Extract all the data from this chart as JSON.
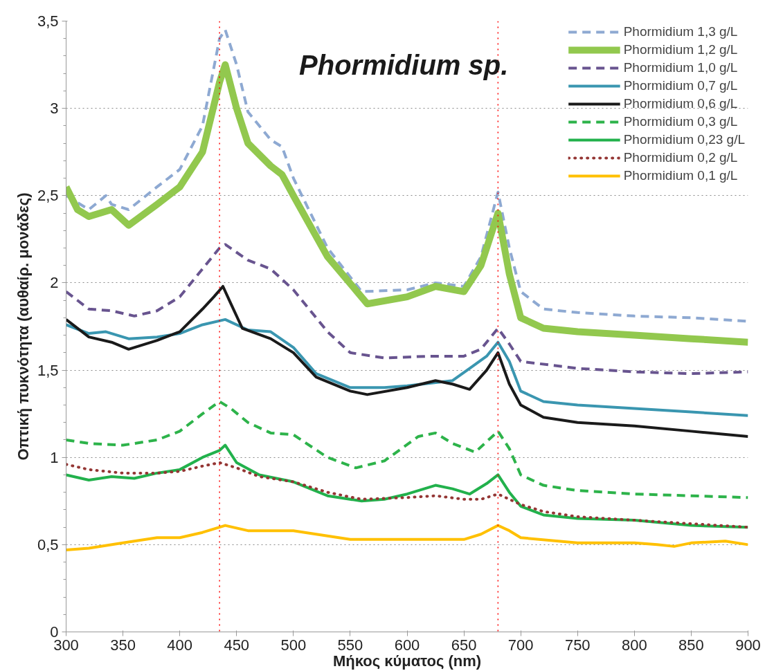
{
  "chart_data": {
    "type": "line",
    "title": "Phormidium sp.",
    "xlabel": "Μήκος κύματος (nm)",
    "ylabel": "Οπτική πυκνότητα (αυθαίρ. μονάδες)",
    "xlim": [
      300,
      900
    ],
    "xticks": [
      300,
      350,
      400,
      450,
      500,
      550,
      600,
      650,
      700,
      750,
      800,
      850,
      900
    ],
    "ylim": [
      0,
      3.5
    ],
    "yticks": [
      {
        "value": 0,
        "label": "0"
      },
      {
        "value": 0.5,
        "label": "0,5"
      },
      {
        "value": 1,
        "label": "1"
      },
      {
        "value": 1.5,
        "label": "1,5"
      },
      {
        "value": 2,
        "label": "2"
      },
      {
        "value": 2.5,
        "label": "2,5"
      },
      {
        "value": 3,
        "label": "3"
      },
      {
        "value": 3.5,
        "label": "3,5"
      }
    ],
    "grid": "y",
    "legend": "top right",
    "ref_lines": [
      {
        "axis": "x",
        "value": 435,
        "color": "#ff0000",
        "line_style": "dotted"
      },
      {
        "axis": "x",
        "value": 680,
        "color": "#ff0000",
        "line_style": "dotted"
      }
    ],
    "series": [
      {
        "name": "Phormidium 1,3 g/L",
        "color": "#8ea9d2",
        "line_style": "dashed",
        "x": [
          300,
          320,
          335,
          340,
          355,
          380,
          400,
          420,
          435,
          440,
          450,
          460,
          480,
          490,
          500,
          530,
          560,
          600,
          625,
          650,
          665,
          680,
          690,
          700,
          720,
          750,
          800,
          850,
          900
        ],
        "values": [
          2.5,
          2.42,
          2.5,
          2.45,
          2.42,
          2.55,
          2.65,
          2.9,
          3.4,
          3.45,
          3.25,
          2.98,
          2.82,
          2.78,
          2.6,
          2.2,
          1.95,
          1.96,
          2.0,
          1.98,
          2.15,
          2.52,
          2.2,
          1.95,
          1.85,
          1.83,
          1.81,
          1.8,
          1.78
        ]
      },
      {
        "name": "Phormidium 1,2 g/L",
        "color": "#92c84e",
        "line_style": "solid",
        "x": [
          300,
          310,
          320,
          340,
          355,
          380,
          400,
          420,
          435,
          440,
          450,
          460,
          480,
          490,
          500,
          530,
          565,
          600,
          625,
          650,
          665,
          680,
          690,
          700,
          720,
          750,
          800,
          850,
          900
        ],
        "values": [
          2.55,
          2.42,
          2.38,
          2.42,
          2.33,
          2.45,
          2.55,
          2.75,
          3.15,
          3.25,
          3.0,
          2.8,
          2.67,
          2.62,
          2.5,
          2.15,
          1.88,
          1.92,
          1.98,
          1.95,
          2.1,
          2.4,
          2.05,
          1.8,
          1.74,
          1.72,
          1.7,
          1.68,
          1.66
        ]
      },
      {
        "name": "Phormidium 1,0 g/L",
        "color": "#68548f",
        "line_style": "dashed",
        "x": [
          300,
          320,
          340,
          360,
          380,
          400,
          420,
          435,
          440,
          460,
          480,
          500,
          530,
          550,
          580,
          620,
          650,
          665,
          680,
          690,
          700,
          750,
          800,
          850,
          900
        ],
        "values": [
          1.95,
          1.85,
          1.84,
          1.81,
          1.84,
          1.92,
          2.08,
          2.2,
          2.22,
          2.13,
          2.08,
          1.96,
          1.72,
          1.6,
          1.57,
          1.58,
          1.58,
          1.62,
          1.74,
          1.65,
          1.55,
          1.51,
          1.49,
          1.48,
          1.49
        ]
      },
      {
        "name": "Phormidium 0,7 g/L",
        "color": "#3a96b0",
        "line_style": "solid",
        "x": [
          300,
          320,
          335,
          355,
          380,
          400,
          420,
          440,
          460,
          480,
          500,
          520,
          550,
          580,
          600,
          640,
          655,
          670,
          680,
          690,
          700,
          720,
          750,
          800,
          850,
          900
        ],
        "values": [
          1.76,
          1.71,
          1.72,
          1.68,
          1.69,
          1.71,
          1.76,
          1.79,
          1.73,
          1.72,
          1.63,
          1.48,
          1.4,
          1.4,
          1.41,
          1.44,
          1.51,
          1.58,
          1.66,
          1.55,
          1.38,
          1.32,
          1.3,
          1.28,
          1.26,
          1.24
        ]
      },
      {
        "name": "Phormidium 0,6 g/L",
        "color": "#1a1a1a",
        "line_style": "solid",
        "x": [
          300,
          320,
          340,
          355,
          380,
          400,
          420,
          430,
          438,
          445,
          455,
          480,
          500,
          520,
          550,
          565,
          600,
          625,
          640,
          655,
          670,
          680,
          690,
          700,
          720,
          750,
          800,
          850,
          900
        ],
        "values": [
          1.79,
          1.69,
          1.66,
          1.62,
          1.67,
          1.72,
          1.85,
          1.92,
          1.98,
          1.88,
          1.74,
          1.68,
          1.6,
          1.46,
          1.38,
          1.36,
          1.4,
          1.44,
          1.42,
          1.39,
          1.5,
          1.6,
          1.42,
          1.3,
          1.23,
          1.2,
          1.18,
          1.15,
          1.12
        ]
      },
      {
        "name": "Phormidium 0,3 g/L",
        "color": "#2db34a",
        "line_style": "dashed",
        "x": [
          300,
          320,
          350,
          380,
          400,
          420,
          435,
          445,
          460,
          480,
          500,
          530,
          555,
          580,
          610,
          625,
          640,
          660,
          680,
          690,
          700,
          720,
          750,
          800,
          850,
          900
        ],
        "values": [
          1.1,
          1.08,
          1.07,
          1.1,
          1.15,
          1.25,
          1.32,
          1.28,
          1.2,
          1.14,
          1.13,
          1.0,
          0.94,
          0.98,
          1.12,
          1.14,
          1.08,
          1.03,
          1.15,
          1.05,
          0.9,
          0.84,
          0.81,
          0.79,
          0.78,
          0.77
        ]
      },
      {
        "name": "Phormidium 0,23 g/L",
        "color": "#22b14c",
        "line_style": "solid",
        "x": [
          300,
          320,
          340,
          360,
          380,
          400,
          420,
          435,
          440,
          450,
          470,
          500,
          530,
          560,
          580,
          600,
          625,
          640,
          655,
          670,
          680,
          690,
          700,
          720,
          750,
          800,
          850,
          900
        ],
        "values": [
          0.9,
          0.87,
          0.89,
          0.88,
          0.91,
          0.93,
          1.0,
          1.04,
          1.07,
          0.97,
          0.9,
          0.86,
          0.78,
          0.75,
          0.76,
          0.79,
          0.84,
          0.82,
          0.79,
          0.85,
          0.9,
          0.8,
          0.72,
          0.67,
          0.65,
          0.64,
          0.61,
          0.6
        ]
      },
      {
        "name": "Phormidium 0,2 g/L",
        "color": "#943634",
        "line_style": "dotted",
        "x": [
          300,
          320,
          350,
          380,
          400,
          420,
          435,
          450,
          470,
          500,
          530,
          560,
          600,
          625,
          650,
          665,
          680,
          690,
          700,
          720,
          750,
          800,
          850,
          900
        ],
        "values": [
          0.96,
          0.93,
          0.91,
          0.91,
          0.92,
          0.95,
          0.97,
          0.94,
          0.89,
          0.86,
          0.8,
          0.76,
          0.77,
          0.78,
          0.76,
          0.76,
          0.79,
          0.76,
          0.73,
          0.69,
          0.66,
          0.64,
          0.62,
          0.6
        ]
      },
      {
        "name": "Phormidium 0,1 g/L",
        "color": "#ffc000",
        "line_style": "solid",
        "x": [
          300,
          320,
          350,
          380,
          400,
          420,
          435,
          440,
          460,
          500,
          550,
          600,
          650,
          665,
          680,
          690,
          700,
          750,
          800,
          820,
          835,
          850,
          880,
          900
        ],
        "values": [
          0.47,
          0.48,
          0.51,
          0.54,
          0.54,
          0.57,
          0.6,
          0.61,
          0.58,
          0.58,
          0.53,
          0.53,
          0.53,
          0.56,
          0.61,
          0.58,
          0.54,
          0.51,
          0.51,
          0.5,
          0.49,
          0.51,
          0.52,
          0.5
        ]
      }
    ]
  }
}
